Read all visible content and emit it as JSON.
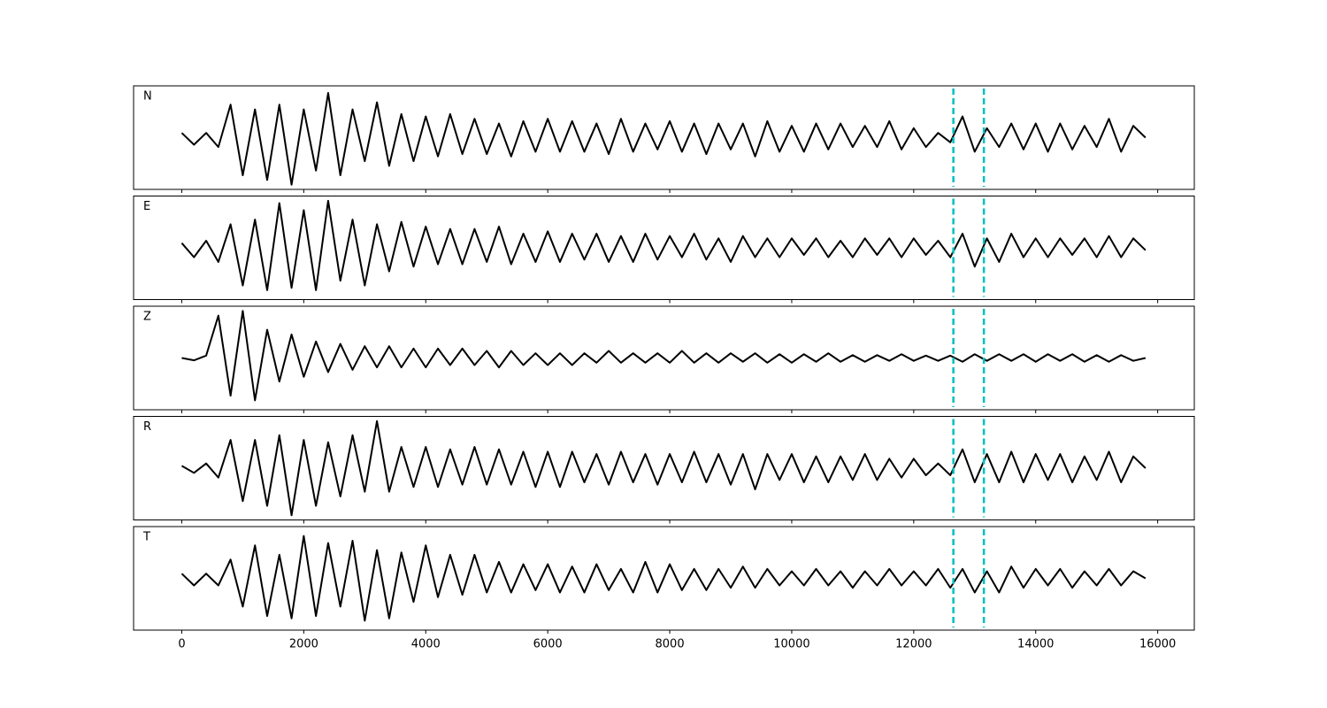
{
  "chart_data": {
    "type": "line",
    "x": [
      0,
      200,
      400,
      600,
      800,
      1000,
      1200,
      1400,
      1600,
      1800,
      2000,
      2200,
      2400,
      2600,
      2800,
      3000,
      3200,
      3400,
      3600,
      3800,
      4000,
      4200,
      4400,
      4600,
      4800,
      5000,
      5200,
      5400,
      5600,
      5800,
      6000,
      6200,
      6400,
      6600,
      6800,
      7000,
      7200,
      7400,
      7600,
      7800,
      8000,
      8200,
      8400,
      8600,
      8800,
      9000,
      9200,
      9400,
      9600,
      9800,
      10000,
      10200,
      10400,
      10600,
      10800,
      11000,
      11200,
      11400,
      11600,
      11800,
      12000,
      12200,
      12400,
      12600,
      12800,
      13000,
      13200,
      13400,
      13600,
      13800,
      14000,
      14200,
      14400,
      14600,
      14800,
      15000,
      15200,
      15400,
      15600,
      15800
    ],
    "series": [
      {
        "name": "N",
        "color": "#000000",
        "values": [
          0.1,
          -0.15,
          0.1,
          -0.2,
          0.7,
          -0.8,
          0.6,
          -0.9,
          0.7,
          -1.0,
          0.6,
          -0.7,
          0.95,
          -0.8,
          0.6,
          -0.5,
          0.75,
          -0.6,
          0.5,
          -0.5,
          0.45,
          -0.4,
          0.5,
          -0.35,
          0.4,
          -0.35,
          0.3,
          -0.4,
          0.35,
          -0.3,
          0.4,
          -0.3,
          0.35,
          -0.3,
          0.3,
          -0.35,
          0.4,
          -0.3,
          0.3,
          -0.25,
          0.35,
          -0.3,
          0.3,
          -0.35,
          0.3,
          -0.25,
          0.3,
          -0.4,
          0.35,
          -0.3,
          0.25,
          -0.3,
          0.3,
          -0.25,
          0.3,
          -0.2,
          0.25,
          -0.2,
          0.35,
          -0.25,
          0.2,
          -0.2,
          0.1,
          -0.1,
          0.45,
          -0.3,
          0.2,
          -0.2,
          0.3,
          -0.25,
          0.3,
          -0.3,
          0.3,
          -0.25,
          0.25,
          -0.2,
          0.4,
          -0.3,
          0.25,
          0.0
        ]
      },
      {
        "name": "E",
        "color": "#000000",
        "values": [
          0.1,
          -0.2,
          0.15,
          -0.3,
          0.5,
          -0.8,
          0.6,
          -0.9,
          0.95,
          -0.85,
          0.8,
          -0.9,
          1.0,
          -0.7,
          0.6,
          -0.8,
          0.5,
          -0.5,
          0.55,
          -0.4,
          0.45,
          -0.35,
          0.4,
          -0.35,
          0.4,
          -0.3,
          0.45,
          -0.35,
          0.3,
          -0.3,
          0.35,
          -0.3,
          0.3,
          -0.25,
          0.3,
          -0.3,
          0.25,
          -0.3,
          0.3,
          -0.25,
          0.25,
          -0.2,
          0.3,
          -0.25,
          0.2,
          -0.3,
          0.25,
          -0.2,
          0.2,
          -0.2,
          0.2,
          -0.15,
          0.2,
          -0.2,
          0.15,
          -0.2,
          0.2,
          -0.15,
          0.2,
          -0.2,
          0.2,
          -0.15,
          0.15,
          -0.2,
          0.3,
          -0.4,
          0.2,
          -0.3,
          0.3,
          -0.2,
          0.2,
          -0.2,
          0.2,
          -0.15,
          0.2,
          -0.2,
          0.25,
          -0.2,
          0.2,
          -0.05
        ]
      },
      {
        "name": "Z",
        "color": "#000000",
        "values": [
          0.0,
          -0.05,
          0.05,
          0.9,
          -0.8,
          1.0,
          -0.9,
          0.6,
          -0.5,
          0.5,
          -0.4,
          0.35,
          -0.3,
          0.3,
          -0.25,
          0.25,
          -0.2,
          0.25,
          -0.2,
          0.2,
          -0.2,
          0.2,
          -0.15,
          0.2,
          -0.15,
          0.15,
          -0.2,
          0.15,
          -0.15,
          0.1,
          -0.15,
          0.1,
          -0.15,
          0.1,
          -0.1,
          0.15,
          -0.1,
          0.1,
          -0.1,
          0.1,
          -0.1,
          0.15,
          -0.1,
          0.1,
          -0.1,
          0.1,
          -0.08,
          0.1,
          -0.1,
          0.08,
          -0.1,
          0.08,
          -0.08,
          0.1,
          -0.08,
          0.06,
          -0.08,
          0.06,
          -0.06,
          0.08,
          -0.06,
          0.05,
          -0.06,
          0.05,
          -0.08,
          0.08,
          -0.06,
          0.08,
          -0.06,
          0.08,
          -0.08,
          0.08,
          -0.06,
          0.08,
          -0.08,
          0.06,
          -0.08,
          0.06,
          -0.06,
          0.0
        ]
      },
      {
        "name": "R",
        "color": "#000000",
        "values": [
          0.05,
          -0.1,
          0.1,
          -0.2,
          0.6,
          -0.7,
          0.6,
          -0.8,
          0.7,
          -1.0,
          0.6,
          -0.8,
          0.55,
          -0.6,
          0.7,
          -0.5,
          1.0,
          -0.5,
          0.45,
          -0.4,
          0.45,
          -0.4,
          0.4,
          -0.35,
          0.45,
          -0.35,
          0.4,
          -0.35,
          0.35,
          -0.4,
          0.35,
          -0.4,
          0.35,
          -0.3,
          0.3,
          -0.35,
          0.35,
          -0.3,
          0.3,
          -0.35,
          0.3,
          -0.3,
          0.35,
          -0.3,
          0.3,
          -0.35,
          0.3,
          -0.45,
          0.3,
          -0.25,
          0.3,
          -0.3,
          0.25,
          -0.3,
          0.25,
          -0.25,
          0.3,
          -0.25,
          0.2,
          -0.2,
          0.2,
          -0.15,
          0.1,
          -0.15,
          0.4,
          -0.3,
          0.3,
          -0.3,
          0.35,
          -0.3,
          0.3,
          -0.25,
          0.3,
          -0.3,
          0.25,
          -0.25,
          0.35,
          -0.3,
          0.25,
          0.0
        ]
      },
      {
        "name": "T",
        "color": "#000000",
        "values": [
          0.1,
          -0.15,
          0.1,
          -0.15,
          0.4,
          -0.6,
          0.7,
          -0.8,
          0.5,
          -0.85,
          0.9,
          -0.8,
          0.75,
          -0.6,
          0.8,
          -0.9,
          0.6,
          -0.85,
          0.55,
          -0.5,
          0.7,
          -0.4,
          0.5,
          -0.35,
          0.5,
          -0.3,
          0.35,
          -0.3,
          0.3,
          -0.25,
          0.3,
          -0.3,
          0.25,
          -0.3,
          0.3,
          -0.25,
          0.2,
          -0.3,
          0.35,
          -0.3,
          0.3,
          -0.25,
          0.2,
          -0.25,
          0.2,
          -0.2,
          0.25,
          -0.2,
          0.2,
          -0.15,
          0.15,
          -0.15,
          0.2,
          -0.15,
          0.15,
          -0.2,
          0.15,
          -0.15,
          0.2,
          -0.15,
          0.15,
          -0.15,
          0.2,
          -0.2,
          0.2,
          -0.3,
          0.15,
          -0.3,
          0.25,
          -0.2,
          0.2,
          -0.15,
          0.2,
          -0.2,
          0.15,
          -0.15,
          0.2,
          -0.15,
          0.15,
          0.0
        ]
      }
    ],
    "xlim": [
      -790,
      16600
    ],
    "xticks": [
      0,
      2000,
      4000,
      6000,
      8000,
      10000,
      12000,
      14000,
      16000
    ],
    "ylim": [
      -1.1,
      1.1
    ],
    "vlines": [
      12650,
      13150
    ],
    "vline_color": "#00bfbf",
    "grid": false
  }
}
